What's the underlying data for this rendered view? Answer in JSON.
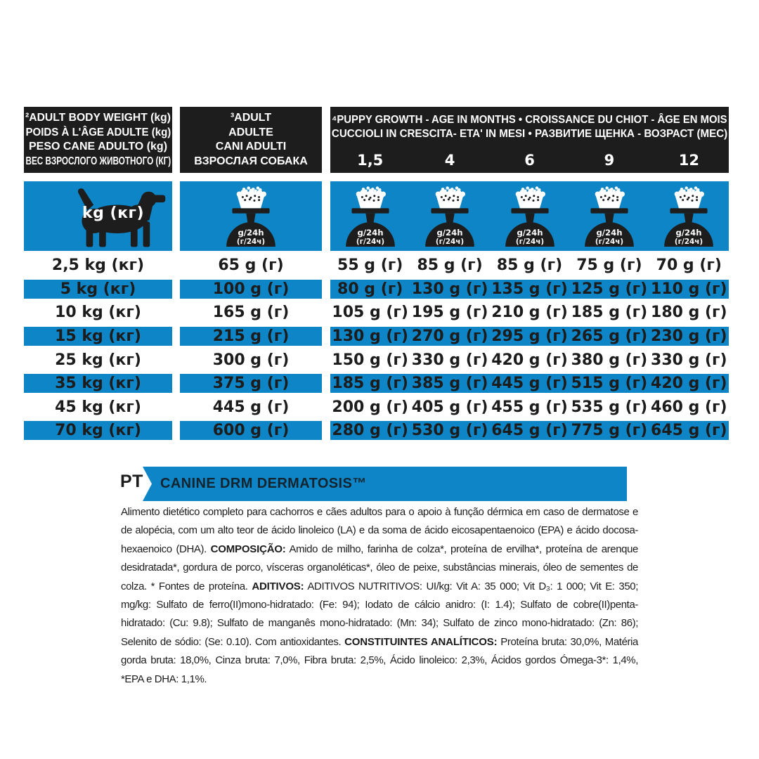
{
  "colors": {
    "blue": "#0e85c6",
    "header_black": "#1d1d1d",
    "text": "#1c1c1c"
  },
  "header": {
    "weight_box": {
      "lines": [
        "²ADULT BODY WEIGHT (kg)",
        "POIDS À L'ÂGE ADULTE (kg)",
        "PESO CANE ADULTO (kg)",
        "ВЕС ВЗРОСЛОГО ЖИВОТНОГО (КГ)"
      ]
    },
    "adult_box": {
      "lines": [
        "³ADULT",
        "ADULTE",
        "CANI ADULTI",
        "ВЗРОСЛАЯ СОБАКА"
      ]
    },
    "puppy_box": {
      "lines": [
        "⁴PUPPY GROWTH - AGE IN MONTHS • CROISSANCE DU CHIOT - ÂGE EN MOIS",
        "CUCCIOLI IN CRESCITA- ETA' IN MESI • РАЗВИТИЕ ЩЕНКА - ВОЗРАСТ (МЕС)"
      ],
      "ages": [
        "1,5",
        "4",
        "6",
        "9",
        "12"
      ]
    }
  },
  "icons": {
    "dog_weight_label": "kg (кг)",
    "scale_line1": "g/24h",
    "scale_line2": "(г/24ч)"
  },
  "table": {
    "rows": [
      {
        "weight": "2,5 kg (кг)",
        "adult": "65 g (г)",
        "puppy": [
          "55 g (г)",
          "85 g (г)",
          "85 g (г)",
          "75 g (г)",
          "70 g (г)"
        ]
      },
      {
        "weight": "5 kg (кг)",
        "adult": "100 g (г)",
        "puppy": [
          "80 g (г)",
          "130 g (г)",
          "135 g (г)",
          "125 g (г)",
          "110 g (г)"
        ]
      },
      {
        "weight": "10 kg (кг)",
        "adult": "165 g (г)",
        "puppy": [
          "105 g (г)",
          "195 g (г)",
          "210 g (г)",
          "185 g (г)",
          "180 g (г)"
        ]
      },
      {
        "weight": "15 kg (кг)",
        "adult": "215 g (г)",
        "puppy": [
          "130 g (г)",
          "270 g (г)",
          "295 g (г)",
          "265 g (г)",
          "230 g (г)"
        ]
      },
      {
        "weight": "25 kg (кг)",
        "adult": "300 g (г)",
        "puppy": [
          "150 g (г)",
          "330 g (г)",
          "420 g (г)",
          "380 g (г)",
          "330 g (г)"
        ]
      },
      {
        "weight": "35 kg (кг)",
        "adult": "375 g (г)",
        "puppy": [
          "185 g (г)",
          "385 g (г)",
          "445 g (г)",
          "515 g (г)",
          "420 g (г)"
        ]
      },
      {
        "weight": "45 kg (кг)",
        "adult": "445 g (г)",
        "puppy": [
          "200 g (г)",
          "405 g (г)",
          "455 g (г)",
          "535 g (г)",
          "460 g (г)"
        ]
      },
      {
        "weight": "70 kg (кг)",
        "adult": "600 g (г)",
        "puppy": [
          "280 g (г)",
          "530 g (г)",
          "645 g (г)",
          "775 g (г)",
          "645 g (г)"
        ]
      }
    ]
  },
  "footer": {
    "lang": "PT",
    "banner": "CANINE DRM DERMATOSIS™",
    "paragraph": [
      {
        "bold": false,
        "text": "Alimento dietético completo para cachorros e cães adultos para o apoio à função dérmica em caso de dermatose e de alopécia, com um alto teor de ácido linoleico (LA) e da soma de ácido eicosapentaenoico (EPA) e ácido docosa-hexaenoico (DHA). "
      },
      {
        "bold": true,
        "text": "COMPOSIÇÃO:"
      },
      {
        "bold": false,
        "text": " Amido de milho, farinha de colza*, proteína de ervilha*, proteína de arenque desidratada*, gordura de porco, vísceras organoléticas*, óleo de peixe, substâncias minerais, óleo de sementes de colza. * Fontes de proteína. "
      },
      {
        "bold": true,
        "text": "ADITIVOS:"
      },
      {
        "bold": false,
        "text": " ADITIVOS NUTRITIVOS: UI/kg: Vit A: 35 000; Vit D₃: 1 000; Vit E: 350; mg/kg: Sulfato de ferro(II)mono-hidratado: (Fe: 94); Iodato de cálcio anidro: (I: 1.4); Sulfato de cobre(II)penta-hidratado: (Cu: 9.8); Sulfato de manganês mono-hidratado: (Mn: 34); Sulfato de zinco mono-hidratado: (Zn: 86); Selenito de sódio: (Se: 0.10). Com antioxidantes. "
      },
      {
        "bold": true,
        "text": "CONSTITUINTES ANALÍTICOS:"
      },
      {
        "bold": false,
        "text": " Proteína bruta: 30,0%, Matéria gorda bruta: 18,0%, Cinza bruta: 7,0%, Fibra bruta: 2,5%, Ácido linoleico: 2,3%, Ácidos gordos Ómega-3*: 1,4%, *EPA e DHA: 1,1%."
      }
    ]
  }
}
